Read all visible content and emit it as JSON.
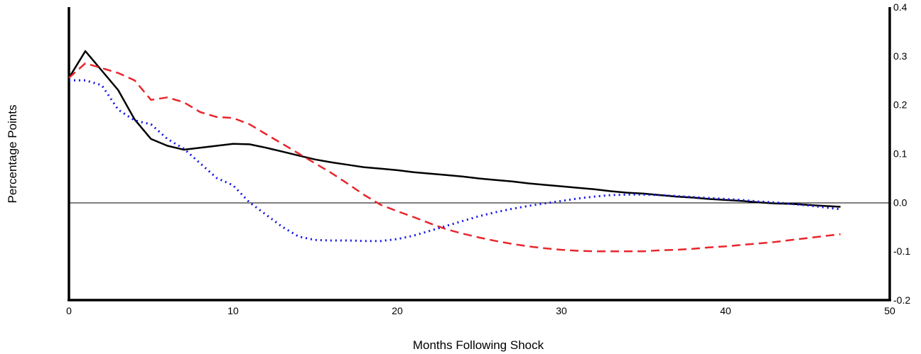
{
  "chart_data": {
    "type": "line",
    "title": "",
    "xlabel": "Months Following Shock",
    "ylabel": "Percentage Points",
    "xlim": [
      0,
      50
    ],
    "ylim": [
      -0.2,
      0.4
    ],
    "x_ticks": [
      0,
      10,
      20,
      30,
      40,
      50
    ],
    "x_tick_labels": [
      "0",
      "10",
      "20",
      "30",
      "40",
      "50"
    ],
    "y_ticks": [
      -0.2,
      -0.1,
      0.0,
      0.1,
      0.2,
      0.3,
      0.4
    ],
    "y_tick_labels": [
      "-0.2",
      "-0.1",
      "0.0",
      "0.1",
      "0.2",
      "0.3",
      "0.4"
    ],
    "y_axis_side": "right",
    "zero_line": true,
    "grid": false,
    "series": [
      {
        "style": "solid",
        "color": "#000000",
        "x": [
          0,
          1,
          2,
          3,
          4,
          5,
          6,
          7,
          8,
          9,
          10,
          11,
          12,
          13,
          14,
          15,
          16,
          17,
          18,
          19,
          20,
          21,
          22,
          23,
          24,
          25,
          26,
          27,
          28,
          29,
          30,
          31,
          32,
          33,
          34,
          35,
          36,
          37,
          38,
          39,
          40,
          41,
          42,
          43,
          44,
          45,
          46,
          47
        ],
        "values": [
          0.255,
          0.31,
          0.27,
          0.23,
          0.17,
          0.13,
          0.116,
          0.108,
          0.112,
          0.116,
          0.12,
          0.119,
          0.112,
          0.104,
          0.096,
          0.088,
          0.082,
          0.077,
          0.072,
          0.069,
          0.066,
          0.062,
          0.059,
          0.056,
          0.053,
          0.049,
          0.046,
          0.043,
          0.039,
          0.036,
          0.033,
          0.03,
          0.027,
          0.023,
          0.02,
          0.018,
          0.015,
          0.012,
          0.01,
          0.007,
          0.005,
          0.003,
          0.0,
          -0.002,
          -0.003,
          -0.005,
          -0.007,
          -0.009
        ]
      },
      {
        "style": "dashed",
        "color": "#e8262c",
        "x": [
          0,
          1,
          2,
          3,
          4,
          5,
          6,
          7,
          8,
          9,
          10,
          11,
          12,
          13,
          14,
          15,
          16,
          17,
          18,
          19,
          20,
          21,
          22,
          23,
          24,
          25,
          26,
          27,
          28,
          29,
          30,
          31,
          32,
          33,
          34,
          35,
          36,
          37,
          38,
          39,
          40,
          41,
          42,
          43,
          44,
          45,
          46,
          47
        ],
        "values": [
          0.255,
          0.285,
          0.275,
          0.265,
          0.25,
          0.21,
          0.215,
          0.205,
          0.185,
          0.175,
          0.173,
          0.16,
          0.14,
          0.12,
          0.1,
          0.08,
          0.06,
          0.038,
          0.015,
          -0.005,
          -0.018,
          -0.03,
          -0.043,
          -0.055,
          -0.064,
          -0.072,
          -0.079,
          -0.085,
          -0.09,
          -0.094,
          -0.097,
          -0.099,
          -0.1,
          -0.1,
          -0.1,
          -0.1,
          -0.098,
          -0.097,
          -0.095,
          -0.092,
          -0.09,
          -0.087,
          -0.084,
          -0.081,
          -0.077,
          -0.073,
          -0.069,
          -0.065
        ]
      },
      {
        "style": "dotted",
        "color": "#1414e6",
        "x": [
          0,
          1,
          2,
          3,
          4,
          5,
          6,
          7,
          8,
          9,
          10,
          11,
          12,
          13,
          14,
          15,
          16,
          17,
          18,
          19,
          20,
          21,
          22,
          23,
          24,
          25,
          26,
          27,
          28,
          29,
          30,
          31,
          32,
          33,
          34,
          35,
          36,
          37,
          38,
          39,
          40,
          41,
          42,
          43,
          44,
          45,
          46,
          47
        ],
        "values": [
          0.25,
          0.25,
          0.24,
          0.19,
          0.168,
          0.16,
          0.13,
          0.11,
          0.08,
          0.05,
          0.035,
          0.0,
          -0.025,
          -0.05,
          -0.07,
          -0.077,
          -0.078,
          -0.078,
          -0.079,
          -0.079,
          -0.075,
          -0.068,
          -0.058,
          -0.048,
          -0.038,
          -0.028,
          -0.02,
          -0.013,
          -0.007,
          -0.002,
          0.003,
          0.008,
          0.012,
          0.015,
          0.016,
          0.016,
          0.015,
          0.013,
          0.011,
          0.009,
          0.007,
          0.005,
          0.002,
          0.0,
          -0.003,
          -0.006,
          -0.01,
          -0.014
        ]
      }
    ]
  }
}
